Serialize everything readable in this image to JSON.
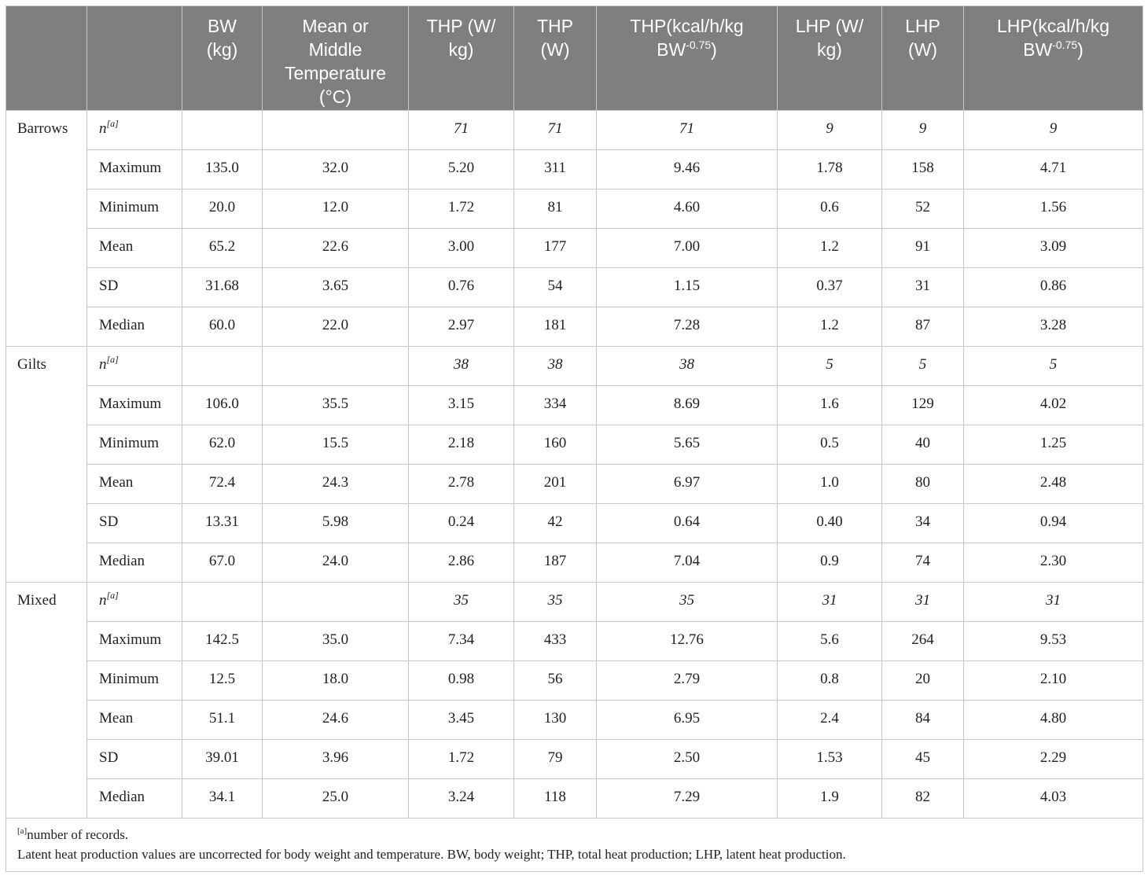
{
  "header": {
    "col0": "",
    "col1": "",
    "bw": [
      "BW",
      "(kg)"
    ],
    "temp": [
      "Mean or",
      "Middle",
      "Temperature",
      "(°C)"
    ],
    "thp_wkg": [
      "THP (W/",
      "kg)"
    ],
    "thp_w": [
      "THP",
      "(W)"
    ],
    "thp_kcal": {
      "line1": "THP(kcal/h/kg",
      "line2": "BW",
      "exp": "-0.75",
      "close": ")"
    },
    "lhp_wkg": [
      "LHP (W/",
      "kg)"
    ],
    "lhp_w": [
      "LHP",
      "(W)"
    ],
    "lhp_kcal": {
      "line1": "LHP(kcal/h/kg",
      "line2": "BW",
      "exp": "-0.75",
      "close": ")"
    }
  },
  "n_label": {
    "base": "n",
    "sup": "[a]"
  },
  "groups": [
    {
      "name": "Barrows",
      "n": [
        "",
        "",
        "71",
        "71",
        "71",
        "9",
        "9",
        "9"
      ],
      "rows": [
        {
          "stat": "Maximum",
          "values": [
            "135.0",
            "32.0",
            "5.20",
            "311",
            "9.46",
            "1.78",
            "158",
            "4.71"
          ]
        },
        {
          "stat": "Minimum",
          "values": [
            "20.0",
            "12.0",
            "1.72",
            "81",
            "4.60",
            "0.6",
            "52",
            "1.56"
          ]
        },
        {
          "stat": "Mean",
          "values": [
            "65.2",
            "22.6",
            "3.00",
            "177",
            "7.00",
            "1.2",
            "91",
            "3.09"
          ]
        },
        {
          "stat": "SD",
          "values": [
            "31.68",
            "3.65",
            "0.76",
            "54",
            "1.15",
            "0.37",
            "31",
            "0.86"
          ]
        },
        {
          "stat": "Median",
          "values": [
            "60.0",
            "22.0",
            "2.97",
            "181",
            "7.28",
            "1.2",
            "87",
            "3.28"
          ]
        }
      ]
    },
    {
      "name": "Gilts",
      "n": [
        "",
        "",
        "38",
        "38",
        "38",
        "5",
        "5",
        "5"
      ],
      "rows": [
        {
          "stat": "Maximum",
          "values": [
            "106.0",
            "35.5",
            "3.15",
            "334",
            "8.69",
            "1.6",
            "129",
            "4.02"
          ]
        },
        {
          "stat": "Minimum",
          "values": [
            "62.0",
            "15.5",
            "2.18",
            "160",
            "5.65",
            "0.5",
            "40",
            "1.25"
          ]
        },
        {
          "stat": "Mean",
          "values": [
            "72.4",
            "24.3",
            "2.78",
            "201",
            "6.97",
            "1.0",
            "80",
            "2.48"
          ]
        },
        {
          "stat": "SD",
          "values": [
            "13.31",
            "5.98",
            "0.24",
            "42",
            "0.64",
            "0.40",
            "34",
            "0.94"
          ]
        },
        {
          "stat": "Median",
          "values": [
            "67.0",
            "24.0",
            "2.86",
            "187",
            "7.04",
            "0.9",
            "74",
            "2.30"
          ]
        }
      ]
    },
    {
      "name": "Mixed",
      "n": [
        "",
        "",
        "35",
        "35",
        "35",
        "31",
        "31",
        "31"
      ],
      "rows": [
        {
          "stat": "Maximum",
          "values": [
            "142.5",
            "35.0",
            "7.34",
            "433",
            "12.76",
            "5.6",
            "264",
            "9.53"
          ]
        },
        {
          "stat": "Minimum",
          "values": [
            "12.5",
            "18.0",
            "0.98",
            "56",
            "2.79",
            "0.8",
            "20",
            "2.10"
          ]
        },
        {
          "stat": "Mean",
          "values": [
            "51.1",
            "24.6",
            "3.45",
            "130",
            "6.95",
            "2.4",
            "84",
            "4.80"
          ]
        },
        {
          "stat": "SD",
          "values": [
            "39.01",
            "3.96",
            "1.72",
            "79",
            "2.50",
            "1.53",
            "45",
            "2.29"
          ]
        },
        {
          "stat": "Median",
          "values": [
            "34.1",
            "25.0",
            "3.24",
            "118",
            "7.29",
            "1.9",
            "82",
            "4.03"
          ]
        }
      ]
    }
  ],
  "footnote": {
    "marker": "[a]",
    "marker_text": "number of records.",
    "note": "Latent heat production values are uncorrected for body weight and temperature. BW, body weight; THP, total heat production; LHP, latent heat production."
  }
}
